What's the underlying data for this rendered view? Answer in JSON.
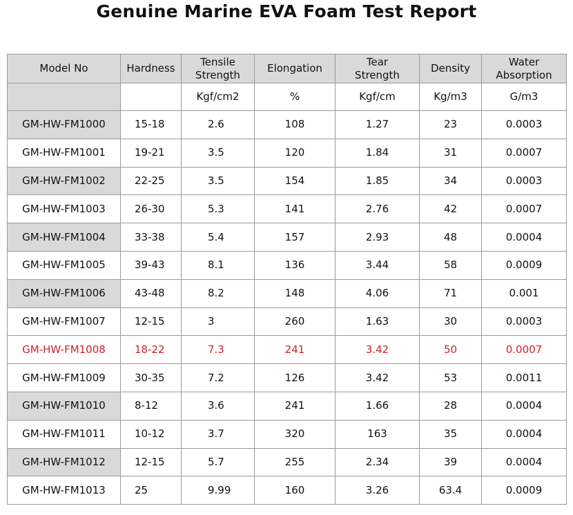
{
  "header": {
    "title": "Genuine Marine EVA Foam Test Report"
  },
  "table": {
    "columns": [
      "Model No",
      "Hardness",
      "Tensile\nStrength",
      "Elongation",
      "Tear\nStrength",
      "Density",
      "Water\nAbsorption"
    ],
    "units": [
      "",
      "",
      "Kgf/cm2",
      "%",
      "Kgf/cm",
      "Kg/m3",
      "G/m3"
    ],
    "rows": [
      [
        "GM-HW-FM1000",
        "15-18",
        "2.6",
        "108",
        "1.27",
        "23",
        "0.0003"
      ],
      [
        "GM-HW-FM1001",
        "19-21",
        "3.5",
        "120",
        "1.84",
        "31",
        "0.0007"
      ],
      [
        "GM-HW-FM1002",
        "22-25",
        "3.5",
        "154",
        "1.85",
        "34",
        "0.0003"
      ],
      [
        "GM-HW-FM1003",
        "26-30",
        "5.3",
        "141",
        "2.76",
        "42",
        "0.0007"
      ],
      [
        "GM-HW-FM1004",
        "33-38",
        "5.4",
        "157",
        "2.93",
        "48",
        "0.0004"
      ],
      [
        "GM-HW-FM1005",
        "39-43",
        "8.1",
        "136",
        "3.44",
        "58",
        "0.0009"
      ],
      [
        "GM-HW-FM1006",
        "43-48",
        "8.2",
        "148",
        "4.06",
        "71",
        "0.001"
      ],
      [
        "GM-HW-FM1007",
        "12-15",
        "3",
        "260",
        "1.63",
        "30",
        "0.0003"
      ],
      [
        "GM-HW-FM1008",
        "18-22",
        "7.3",
        "241",
        "3.42",
        "50",
        "0.0007"
      ],
      [
        "GM-HW-FM1009",
        "30-35",
        "7.2",
        "126",
        "3.42",
        "53",
        "0.0011"
      ],
      [
        "GM-HW-FM1010",
        "8-12",
        "3.6",
        "241",
        "1.66",
        "28",
        "0.0004"
      ],
      [
        "GM-HW-FM1011",
        "10-12",
        "3.7",
        "320",
        "163",
        "35",
        "0.0004"
      ],
      [
        "GM-HW-FM1012",
        "12-15",
        "5.7",
        "255",
        "2.34",
        "39",
        "0.0004"
      ],
      [
        "GM-HW-FM1013",
        "25",
        "9.99",
        "160",
        "3.26",
        "63.4",
        "0.0009"
      ]
    ]
  }
}
